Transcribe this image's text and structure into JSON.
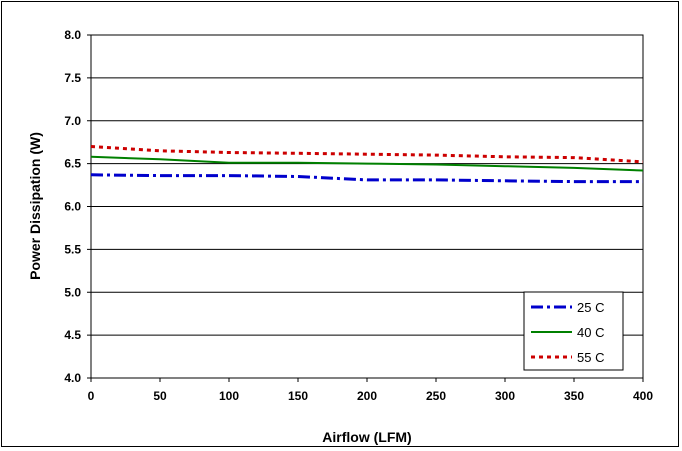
{
  "chart_data": {
    "type": "line",
    "title": "",
    "xlabel": "Airflow (LFM)",
    "ylabel": "Power Dissipation (W)",
    "xlim": [
      0,
      400
    ],
    "ylim": [
      4.0,
      8.0
    ],
    "x_ticks": [
      "0",
      "50",
      "100",
      "150",
      "200",
      "250",
      "300",
      "350",
      "400"
    ],
    "y_ticks": [
      "4.0",
      "4.5",
      "5.0",
      "5.5",
      "6.0",
      "6.5",
      "7.0",
      "7.5",
      "8.0"
    ],
    "grid": "horizontal",
    "legend_position": "bottom-right",
    "series": [
      {
        "name": "25 C",
        "color": "#0000CC",
        "style": "dash-dot",
        "x": [
          0,
          50,
          100,
          150,
          200,
          250,
          300,
          350,
          400
        ],
        "y": [
          6.37,
          6.36,
          6.36,
          6.35,
          6.31,
          6.31,
          6.3,
          6.29,
          6.29
        ]
      },
      {
        "name": "40 C",
        "color": "#008000",
        "style": "solid",
        "x": [
          0,
          50,
          100,
          150,
          200,
          250,
          300,
          350,
          400
        ],
        "y": [
          6.58,
          6.55,
          6.51,
          6.51,
          6.5,
          6.49,
          6.47,
          6.45,
          6.42
        ]
      },
      {
        "name": "55 C",
        "color": "#CC0000",
        "style": "dotted",
        "x": [
          0,
          50,
          100,
          150,
          200,
          250,
          300,
          350,
          400
        ],
        "y": [
          6.7,
          6.65,
          6.63,
          6.62,
          6.61,
          6.6,
          6.58,
          6.57,
          6.52
        ]
      }
    ]
  }
}
